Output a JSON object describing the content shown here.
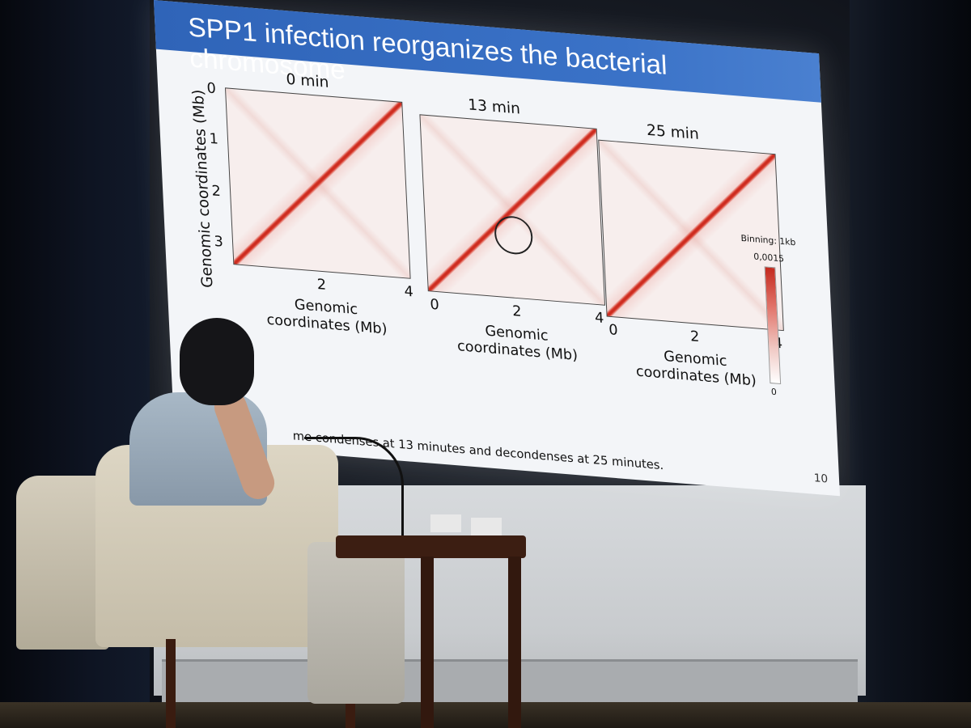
{
  "slide": {
    "title": "SPP1 infection reorganizes the bacterial chromosome",
    "panels": [
      {
        "title": "0 min"
      },
      {
        "title": "13 min"
      },
      {
        "title": "25 min"
      }
    ],
    "y_axis_label": "Genomic coordinates (Mb)",
    "y_ticks": [
      "0",
      "1",
      "2",
      "3"
    ],
    "x_ticks_panel1": [
      "2",
      "4"
    ],
    "x_ticks_panel2": [
      "0",
      "2",
      "4"
    ],
    "x_ticks_panel3": [
      "0",
      "2",
      "4"
    ],
    "x_axis_label_line1": "Genomic",
    "x_axis_label_line2_panel1": "coordinates (Mb)",
    "x_axis_label_line2": "coordinates (Mb)",
    "binning": "Binning: 1kb",
    "colorbar_max": "0,0015",
    "colorbar_min": "0",
    "caption": "me condenses at 13 minutes and decondenses at 25 minutes.",
    "slide_number": "10"
  },
  "colors": {
    "header": "#3a72c7",
    "diagonal": "#d7382a"
  }
}
